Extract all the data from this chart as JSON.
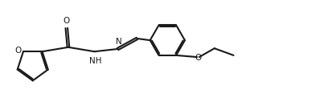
{
  "bg_color": "#ffffff",
  "line_color": "#1a1a1a",
  "line_width": 1.5,
  "figsize": [
    4.18,
    1.37
  ],
  "dpi": 100,
  "atoms": {
    "O_label": "O",
    "NH_label": "NH",
    "N_label": "N",
    "O2_label": "O",
    "O3_label": "O"
  }
}
